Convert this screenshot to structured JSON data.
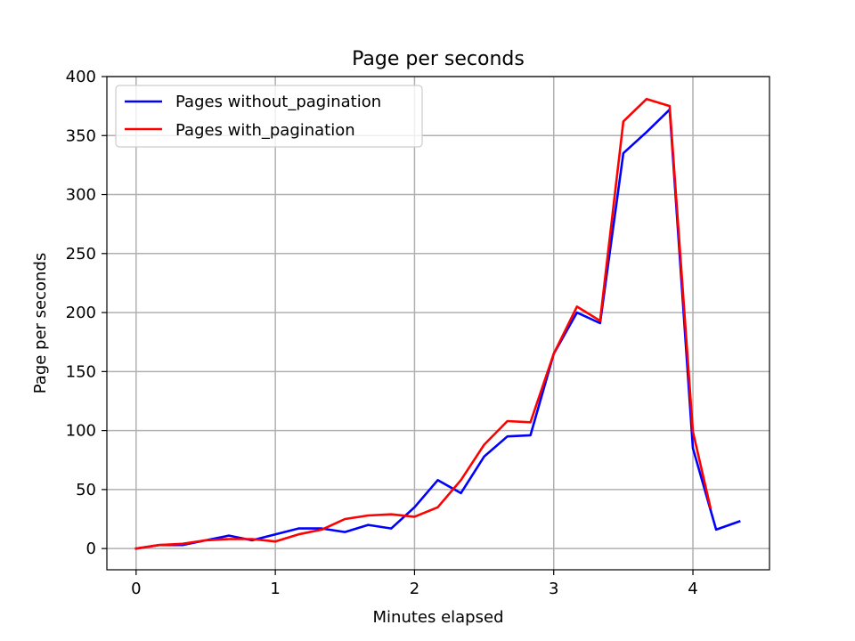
{
  "chart_data": {
    "type": "line",
    "title": "Page per seconds",
    "xlabel": "Minutes elapsed",
    "ylabel": "Page per seconds",
    "xlim": [
      -0.21,
      4.55
    ],
    "ylim": [
      -18,
      400
    ],
    "xticks": [
      0,
      1,
      2,
      3,
      4
    ],
    "yticks": [
      0,
      50,
      100,
      150,
      200,
      250,
      300,
      350,
      400
    ],
    "grid": true,
    "legend_position": "top-left",
    "series": [
      {
        "name": "Pages without_pagination",
        "color": "#0000ff",
        "x": [
          0,
          0.167,
          0.333,
          0.5,
          0.667,
          0.833,
          1.0,
          1.167,
          1.333,
          1.5,
          1.667,
          1.833,
          2.0,
          2.167,
          2.333,
          2.5,
          2.667,
          2.833,
          3.0,
          3.167,
          3.333,
          3.5,
          3.667,
          3.833,
          4.0,
          4.167,
          4.333
        ],
        "y": [
          0,
          3,
          3,
          7,
          11,
          7,
          12,
          17,
          17,
          14,
          20,
          17,
          35,
          58,
          47,
          78,
          95,
          96,
          165,
          200,
          191,
          335,
          353,
          372,
          85,
          16,
          23
        ]
      },
      {
        "name": "Pages with_pagination",
        "color": "#ff0000",
        "x": [
          0,
          0.167,
          0.333,
          0.5,
          0.667,
          0.833,
          1.0,
          1.167,
          1.333,
          1.5,
          1.667,
          1.833,
          2.0,
          2.167,
          2.333,
          2.5,
          2.667,
          2.833,
          3.0,
          3.167,
          3.333,
          3.5,
          3.667,
          3.833,
          4.0,
          4.125
        ],
        "y": [
          0,
          3,
          4,
          7,
          8,
          8,
          6,
          12,
          16,
          25,
          28,
          29,
          27,
          35,
          58,
          88,
          108,
          107,
          165,
          205,
          193,
          362,
          381,
          375,
          99,
          35
        ]
      }
    ]
  }
}
